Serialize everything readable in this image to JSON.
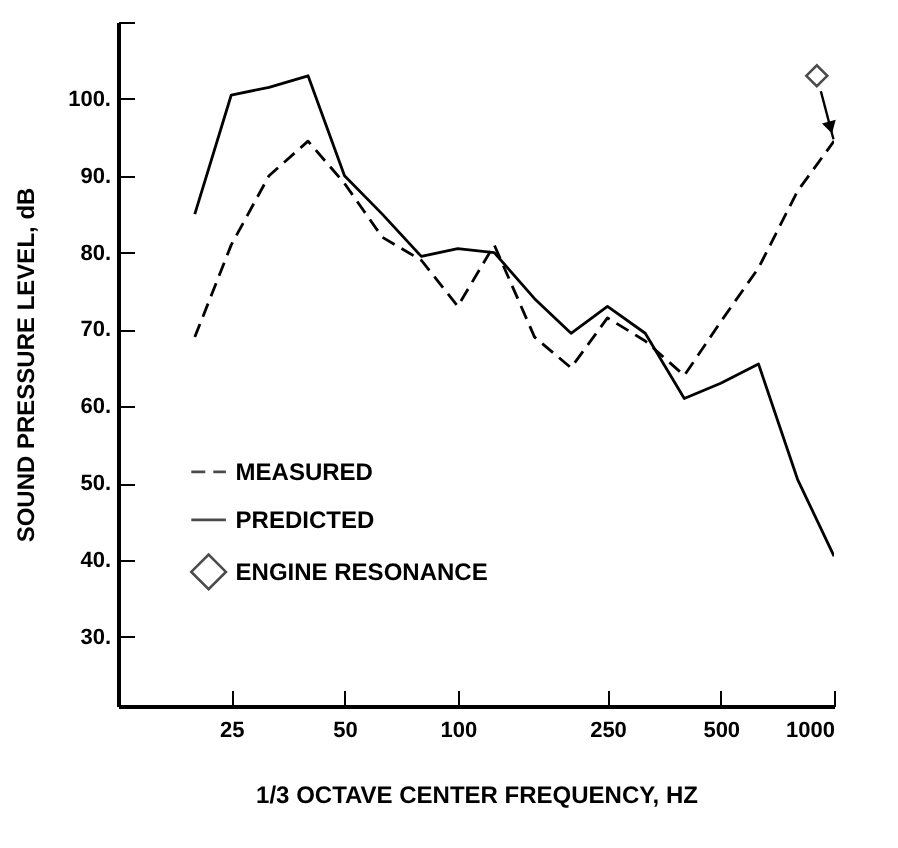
{
  "chart_data": {
    "type": "line",
    "xlabel": "1/3 OCTAVE CENTER FREQUENCY, HZ",
    "ylabel": "SOUND PRESSURE LEVEL, dB",
    "x": [
      20,
      25,
      31.5,
      40,
      50,
      63,
      80,
      100,
      125,
      160,
      200,
      250,
      315,
      400,
      500,
      630,
      800,
      1000
    ],
    "series": [
      {
        "name": "MEASURED",
        "color": "#000000",
        "line_style": "dashed",
        "values": [
          69,
          81,
          90,
          94.5,
          89,
          82,
          79,
          73,
          81,
          69,
          65,
          71.5,
          68.5,
          64,
          71,
          78,
          88,
          94.5
        ]
      },
      {
        "name": "PREDICTED",
        "color": "#000000",
        "line_style": "solid",
        "values": [
          85,
          100.5,
          101.5,
          103,
          90,
          85,
          79.5,
          80.5,
          80,
          74,
          69.5,
          73,
          69.5,
          61,
          63,
          65.5,
          50.5,
          40.5
        ]
      },
      {
        "name": "ENGINE RESONANCE",
        "type": "scatter",
        "marker": "diamond",
        "color": "#000000",
        "x": [
          900
        ],
        "values": [
          103
        ]
      }
    ],
    "log": "x",
    "xlim": [
      12.5,
      1000
    ],
    "xticks": [
      25,
      50,
      100,
      250,
      500,
      1000
    ],
    "ylim": [
      21,
      110
    ],
    "yticks": [
      {
        "value": 30,
        "label": "30."
      },
      {
        "value": 40,
        "label": "40."
      },
      {
        "value": 50,
        "label": "50."
      },
      {
        "value": 60,
        "label": "60."
      },
      {
        "value": 70,
        "label": "70."
      },
      {
        "value": 80,
        "label": "80."
      },
      {
        "value": 90,
        "label": "90."
      },
      {
        "value": 100,
        "label": "100."
      },
      {
        "value": 110,
        "label": null
      }
    ],
    "grid": false,
    "legend": "bottom left"
  }
}
